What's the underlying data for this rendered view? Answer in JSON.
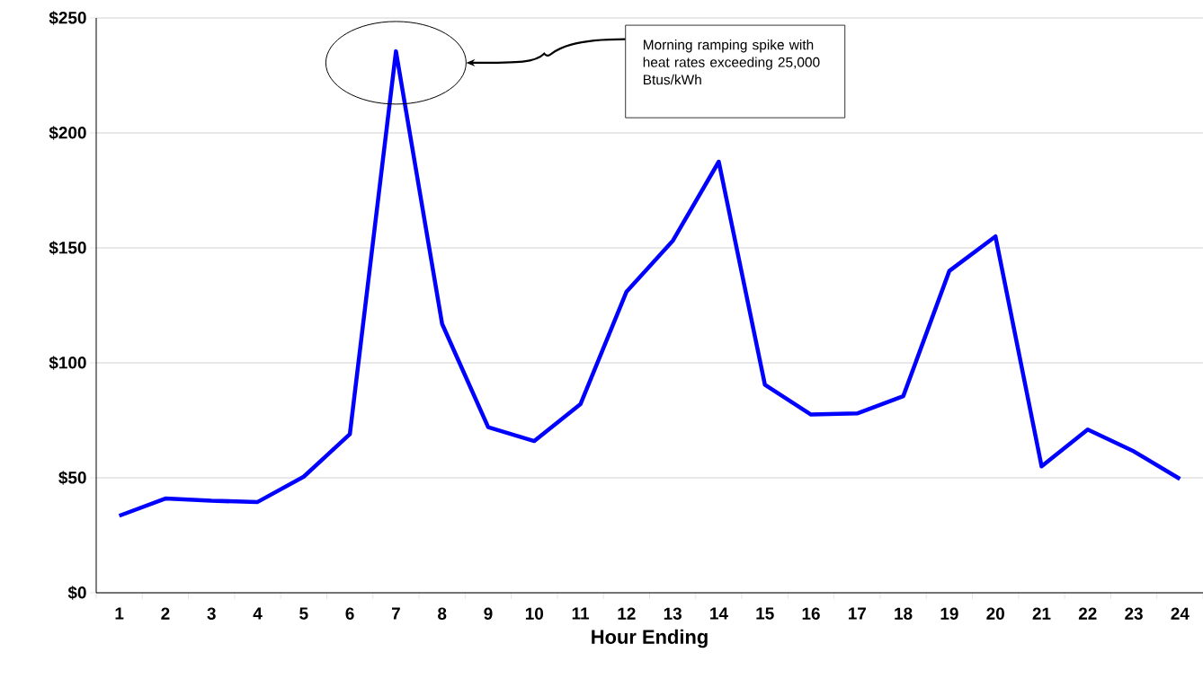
{
  "chart_data": {
    "type": "line",
    "xlabel": "Hour Ending",
    "categories": [
      "1",
      "2",
      "3",
      "4",
      "5",
      "6",
      "7",
      "8",
      "9",
      "10",
      "11",
      "12",
      "13",
      "14",
      "15",
      "16",
      "17",
      "18",
      "19",
      "20",
      "21",
      "22",
      "23",
      "24"
    ],
    "series": [
      {
        "color": "#0000ff",
        "values": [
          33.5,
          41,
          40,
          39.5,
          50.5,
          69,
          235.5,
          117,
          72,
          66,
          82,
          131,
          153,
          187.5,
          90.5,
          77.5,
          78,
          85.5,
          140,
          155,
          55,
          71,
          61.5,
          49.5
        ]
      }
    ],
    "ylim": [
      0,
      250
    ],
    "yticks": [
      {
        "value": 0,
        "label": "$0"
      },
      {
        "value": 50,
        "label": "$50"
      },
      {
        "value": 100,
        "label": "$100"
      },
      {
        "value": 150,
        "label": "$150"
      },
      {
        "value": 200,
        "label": "$200"
      },
      {
        "value": 250,
        "label": "$250"
      }
    ],
    "grid": "y",
    "marker": "none",
    "line_style": "solid",
    "annotations": [
      "Morning ramping spike with heat rates exceeding 25,000 Btus/kWh"
    ]
  }
}
